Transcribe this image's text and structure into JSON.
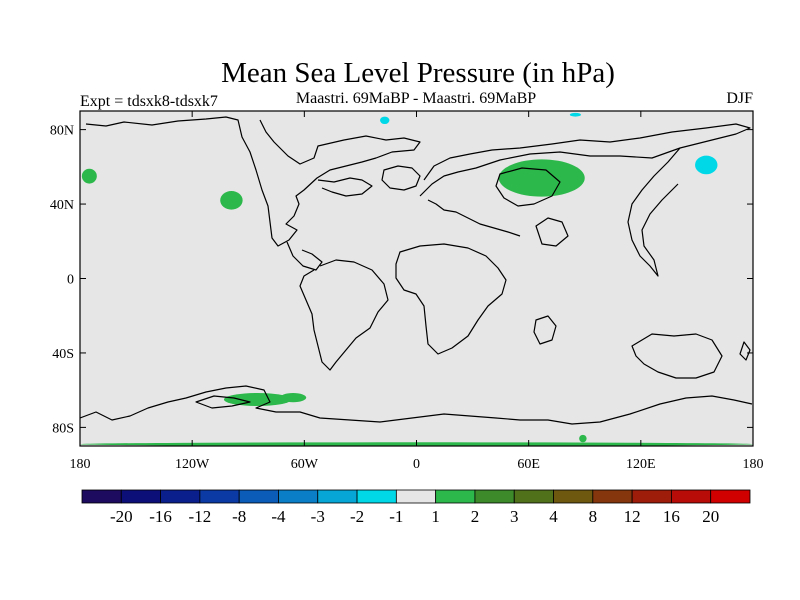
{
  "title": "Mean Sea Level Pressure (in hPa)",
  "left_subtitle": "Expt = tdsxk8-tdsxk7",
  "center_subtitle": "Maastri.  69MaBP - Maastri.  69MaBP",
  "right_subtitle": "DJF",
  "colors": {
    "ocean_background": "#e6e6e6",
    "coastline": "#000000",
    "positive_anomaly": "#2db84b",
    "negative_anomaly": "#00d8e8"
  },
  "map_data": {
    "projection": "cylindrical-equidistant",
    "lon_range": [
      -180,
      180
    ],
    "lat_range": [
      -90,
      90
    ],
    "x_ticks": [
      {
        "lon": -180,
        "label": "180"
      },
      {
        "lon": -120,
        "label": "120W"
      },
      {
        "lon": -60,
        "label": "60W"
      },
      {
        "lon": 0,
        "label": "0"
      },
      {
        "lon": 60,
        "label": "60E"
      },
      {
        "lon": 120,
        "label": "120E"
      },
      {
        "lon": 180,
        "label": "180"
      }
    ],
    "y_ticks": [
      {
        "lat": 80,
        "label": "80N"
      },
      {
        "lat": 40,
        "label": "40N"
      },
      {
        "lat": 0,
        "label": "0"
      },
      {
        "lat": -40,
        "label": "40S"
      },
      {
        "lat": -80,
        "label": "80S"
      }
    ],
    "anomaly_regions": [
      {
        "name": "central-asia-positive",
        "class": "1 to 2",
        "center_lon": 67,
        "center_lat": 54,
        "radius_lon": 23,
        "radius_lat": 10
      },
      {
        "name": "north-pacific-west-positive",
        "class": "1 to 2",
        "center_lon": -175,
        "center_lat": 55,
        "radius_lon": 4,
        "radius_lat": 4
      },
      {
        "name": "north-america-west-positive",
        "class": "1 to 2",
        "center_lon": -99,
        "center_lat": 42,
        "radius_lon": 6,
        "radius_lat": 5
      },
      {
        "name": "antarctic-peninsula-positive",
        "class": "1 to 2",
        "center_lon": -85,
        "center_lat": -65,
        "radius_lon": 18,
        "radius_lat": 3.5
      },
      {
        "name": "antarctic-peninsula-east-positive",
        "class": "1 to 2",
        "center_lon": -66,
        "center_lat": -64,
        "radius_lon": 7,
        "radius_lat": 2.5
      },
      {
        "name": "south-pole-strip-positive",
        "class": "1 to 2",
        "center_lon": 0,
        "center_lat": -89,
        "radius_lon": 180,
        "radius_lat": 1
      },
      {
        "name": "east-antarctica-positive",
        "class": "1 to 2",
        "center_lon": 89,
        "center_lat": -86,
        "radius_lon": 2,
        "radius_lat": 2
      },
      {
        "name": "arctic-atlantic-negative",
        "class": "-2 to -1",
        "center_lon": -17,
        "center_lat": 85,
        "radius_lon": 2.5,
        "radius_lat": 2
      },
      {
        "name": "arctic-asia-negative",
        "class": "-2 to -1",
        "center_lon": 85,
        "center_lat": 88,
        "radius_lon": 3,
        "radius_lat": 1
      },
      {
        "name": "north-pacific-east-negative",
        "class": "-2 to -1",
        "center_lon": 155,
        "center_lat": 61,
        "radius_lon": 6,
        "radius_lat": 5
      }
    ]
  },
  "colorbar": {
    "labels": [
      "-20",
      "-16",
      "-12",
      "-8",
      "-4",
      "-3",
      "-2",
      "-1",
      "1",
      "2",
      "3",
      "4",
      "8",
      "12",
      "16",
      "20"
    ],
    "colors": [
      "#1c0b5e",
      "#0d0f78",
      "#0a1e8c",
      "#0b3aa4",
      "#0b5bb8",
      "#0a7fc8",
      "#06a6d6",
      "#00d8e8",
      "#e6e6e6",
      "#2db84b",
      "#3c8a2a",
      "#50701a",
      "#6e5810",
      "#86360c",
      "#9e1c0a",
      "#b80c08",
      "#d00000"
    ]
  }
}
